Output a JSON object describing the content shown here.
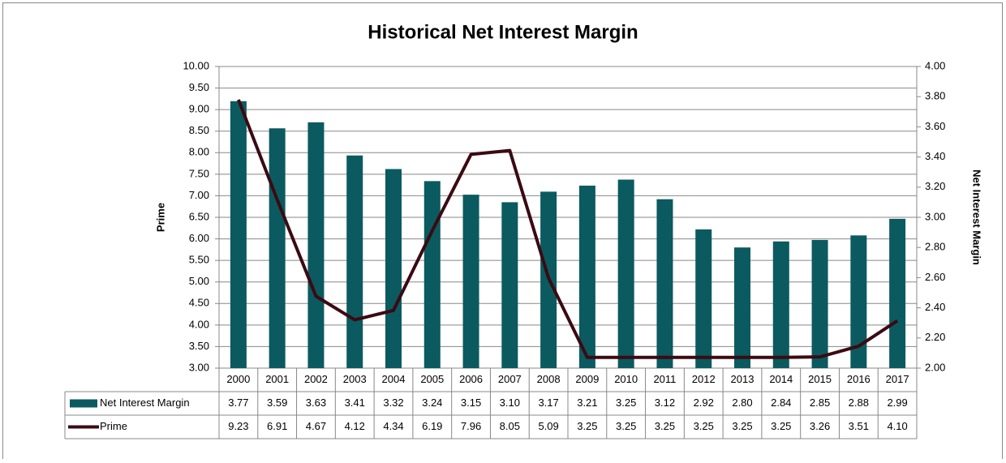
{
  "chart_data": {
    "type": "bar_line",
    "title": "Historical Net Interest Margin",
    "ylabel": "Prime",
    "y2label": "Net Interest Margin",
    "categories": [
      "2000",
      "2001",
      "2002",
      "2003",
      "2004",
      "2005",
      "2006",
      "2007",
      "2008",
      "2009",
      "2010",
      "2011",
      "2012",
      "2013",
      "2014",
      "2015",
      "2016",
      "2017"
    ],
    "series": [
      {
        "name": "Net Interest Margin",
        "type": "bar",
        "axis": "y2",
        "color": "#0b5a60",
        "values": [
          3.77,
          3.59,
          3.63,
          3.41,
          3.32,
          3.24,
          3.15,
          3.1,
          3.17,
          3.21,
          3.25,
          3.12,
          2.92,
          2.8,
          2.84,
          2.85,
          2.88,
          2.99
        ],
        "value_labels": [
          "3.77",
          "3.59",
          "3.63",
          "3.41",
          "3.32",
          "3.24",
          "3.15",
          "3.10",
          "3.17",
          "3.21",
          "3.25",
          "3.12",
          "2.92",
          "2.80",
          "2.84",
          "2.85",
          "2.88",
          "2.99"
        ]
      },
      {
        "name": "Prime",
        "type": "line",
        "axis": "y",
        "color": "#3b0a12",
        "values": [
          9.23,
          6.91,
          4.67,
          4.12,
          4.34,
          6.19,
          7.96,
          8.05,
          5.09,
          3.25,
          3.25,
          3.25,
          3.25,
          3.25,
          3.25,
          3.26,
          3.51,
          4.1
        ],
        "value_labels": [
          "9.23",
          "6.91",
          "4.67",
          "4.12",
          "4.34",
          "6.19",
          "7.96",
          "8.05",
          "5.09",
          "3.25",
          "3.25",
          "3.25",
          "3.25",
          "3.25",
          "3.25",
          "3.26",
          "3.51",
          "4.10"
        ]
      }
    ],
    "ylim": [
      3,
      10
    ],
    "yticks": [
      {
        "value": 3,
        "label": "3.00"
      },
      {
        "value": 3.5,
        "label": "3.50"
      },
      {
        "value": 4,
        "label": "4.00"
      },
      {
        "value": 4.5,
        "label": "4.50"
      },
      {
        "value": 5,
        "label": "5.00"
      },
      {
        "value": 5.5,
        "label": "5.50"
      },
      {
        "value": 6,
        "label": "6.00"
      },
      {
        "value": 6.5,
        "label": "6.50"
      },
      {
        "value": 7,
        "label": "7.00"
      },
      {
        "value": 7.5,
        "label": "7.50"
      },
      {
        "value": 8,
        "label": "8.00"
      },
      {
        "value": 8.5,
        "label": "8.50"
      },
      {
        "value": 9,
        "label": "9.00"
      },
      {
        "value": 9.5,
        "label": "9.50"
      },
      {
        "value": 10,
        "label": "10.00"
      }
    ],
    "y2lim": [
      2,
      4
    ],
    "y2ticks": [
      {
        "value": 2,
        "label": "2.00"
      },
      {
        "value": 2.2,
        "label": "2.20"
      },
      {
        "value": 2.4,
        "label": "2.40"
      },
      {
        "value": 2.6,
        "label": "2.60"
      },
      {
        "value": 2.8,
        "label": "2.80"
      },
      {
        "value": 3,
        "label": "3.00"
      },
      {
        "value": 3.2,
        "label": "3.20"
      },
      {
        "value": 3.4,
        "label": "3.40"
      },
      {
        "value": 3.6,
        "label": "3.60"
      },
      {
        "value": 3.8,
        "label": "3.80"
      },
      {
        "value": 4,
        "label": "4.00"
      }
    ],
    "grid": true,
    "data_table": true
  }
}
